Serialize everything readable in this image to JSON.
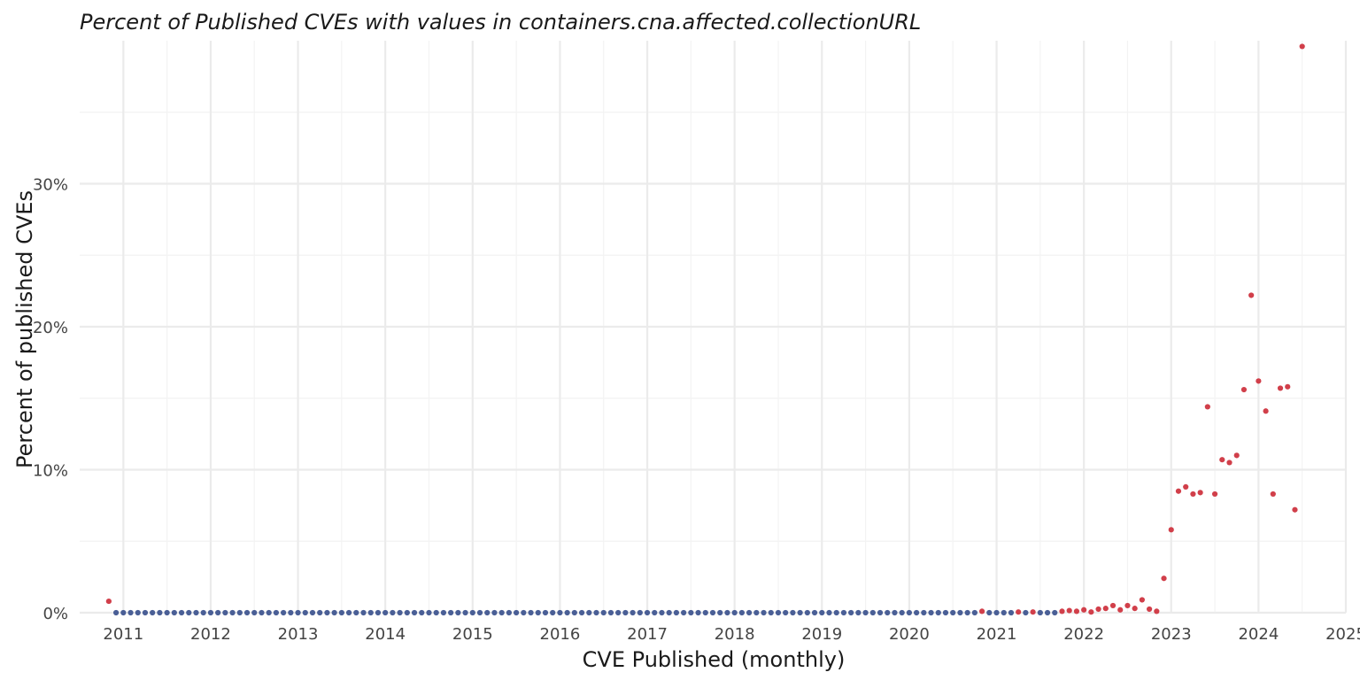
{
  "chart_data": {
    "type": "scatter",
    "title": "Percent of Published CVEs with values in containers.cna.affected.collectionURL",
    "xlabel": "CVE Published (monthly)",
    "ylabel": "Percent of published CVEs",
    "x_ticks": [
      "2011",
      "2012",
      "2013",
      "2014",
      "2015",
      "2016",
      "2017",
      "2018",
      "2019",
      "2020",
      "2021",
      "2022",
      "2023",
      "2024",
      "2025"
    ],
    "y_ticks": [
      "0%",
      "10%",
      "20%",
      "30%"
    ],
    "y_tick_values": [
      0,
      10,
      20,
      30
    ],
    "xlim": [
      "2010-07",
      "2025-01"
    ],
    "ylim": [
      0,
      40
    ],
    "grid": true,
    "legend": "none",
    "zero_color": "#4a5f96",
    "nonzero_color": "#d13f4a",
    "zero_series": {
      "from": "2010-12",
      "to": "2021-09",
      "value": 0,
      "except": [
        "2020-11",
        "2021-04",
        "2021-06"
      ]
    },
    "points": [
      {
        "x": "2010-11",
        "y": 0.8
      },
      {
        "x": "2020-11",
        "y": 0.1
      },
      {
        "x": "2021-04",
        "y": 0.05
      },
      {
        "x": "2021-06",
        "y": 0.05
      },
      {
        "x": "2021-10",
        "y": 0.1
      },
      {
        "x": "2021-11",
        "y": 0.15
      },
      {
        "x": "2021-12",
        "y": 0.1
      },
      {
        "x": "2022-01",
        "y": 0.2
      },
      {
        "x": "2022-02",
        "y": 0.05
      },
      {
        "x": "2022-03",
        "y": 0.25
      },
      {
        "x": "2022-04",
        "y": 0.3
      },
      {
        "x": "2022-05",
        "y": 0.5
      },
      {
        "x": "2022-06",
        "y": 0.2
      },
      {
        "x": "2022-07",
        "y": 0.5
      },
      {
        "x": "2022-08",
        "y": 0.3
      },
      {
        "x": "2022-09",
        "y": 0.9
      },
      {
        "x": "2022-10",
        "y": 0.25
      },
      {
        "x": "2022-11",
        "y": 0.1
      },
      {
        "x": "2022-12",
        "y": 2.4
      },
      {
        "x": "2023-01",
        "y": 5.8
      },
      {
        "x": "2023-02",
        "y": 8.5
      },
      {
        "x": "2023-03",
        "y": 8.8
      },
      {
        "x": "2023-04",
        "y": 8.3
      },
      {
        "x": "2023-05",
        "y": 8.4
      },
      {
        "x": "2023-06",
        "y": 14.4
      },
      {
        "x": "2023-07",
        "y": 8.3
      },
      {
        "x": "2023-08",
        "y": 10.7
      },
      {
        "x": "2023-09",
        "y": 10.5
      },
      {
        "x": "2023-10",
        "y": 11.0
      },
      {
        "x": "2023-11",
        "y": 15.6
      },
      {
        "x": "2023-12",
        "y": 22.2
      },
      {
        "x": "2024-01",
        "y": 16.2
      },
      {
        "x": "2024-02",
        "y": 14.1
      },
      {
        "x": "2024-03",
        "y": 8.3
      },
      {
        "x": "2024-04",
        "y": 15.7
      },
      {
        "x": "2024-05",
        "y": 15.8
      },
      {
        "x": "2024-06",
        "y": 7.2
      },
      {
        "x": "2024-07",
        "y": 39.6
      }
    ]
  }
}
